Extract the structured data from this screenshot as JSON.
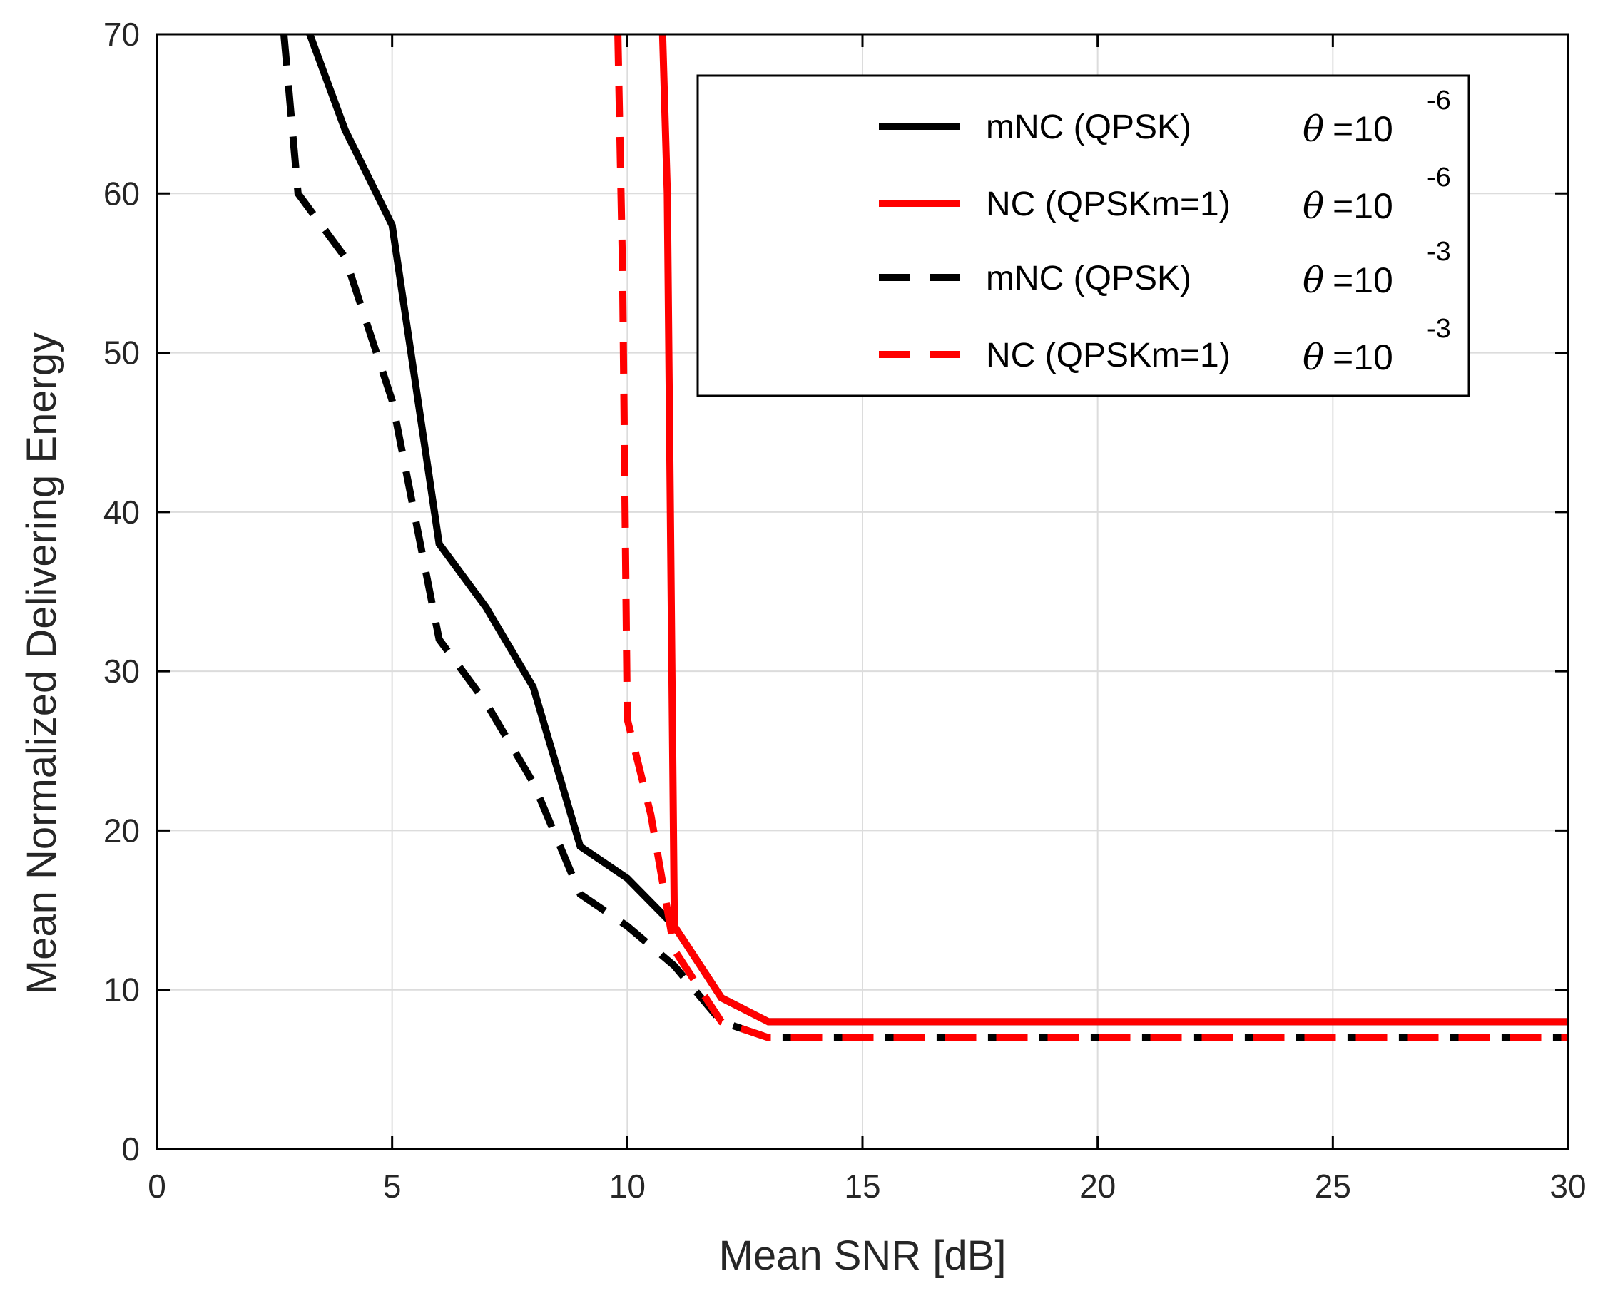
{
  "chart_data": {
    "type": "line",
    "xlabel": "Mean SNR [dB]",
    "ylabel": "Mean Normalized Delivering Energy",
    "xlim": [
      0,
      30
    ],
    "ylim": [
      0,
      70
    ],
    "xticks": [
      0,
      5,
      10,
      15,
      20,
      25,
      30
    ],
    "yticks": [
      0,
      10,
      20,
      30,
      40,
      50,
      60,
      70
    ],
    "xtick_labels": [
      "0",
      "5",
      "10",
      "15",
      "20",
      "25",
      "30"
    ],
    "ytick_labels": [
      "0",
      "10",
      "20",
      "30",
      "40",
      "50",
      "60",
      "70"
    ],
    "grid": true,
    "legend_position": "top-right",
    "series": [
      {
        "name": "mNC (QPSK)",
        "theta_base": "=10",
        "theta_exp": "-6",
        "color": "#000000",
        "style": "solid",
        "x": [
          3,
          4,
          5,
          6,
          7,
          8,
          9,
          10,
          11,
          12,
          13,
          14,
          15,
          16,
          17,
          18,
          19,
          20,
          21,
          22,
          23,
          24,
          25,
          26,
          27,
          28,
          29,
          30
        ],
        "y": [
          72,
          64,
          58,
          38,
          34,
          29,
          19,
          17,
          14,
          9.5,
          8,
          8,
          8,
          8,
          8,
          8,
          8,
          8,
          8,
          8,
          8,
          8,
          8,
          8,
          8,
          8,
          8,
          8
        ]
      },
      {
        "name": "NC (QPSKm=1)",
        "theta_base": "=10",
        "theta_exp": "-6",
        "color": "#ff0000",
        "style": "solid",
        "x": [
          10.75,
          10.85,
          11,
          12,
          13,
          14,
          15,
          16,
          17,
          18,
          19,
          20,
          21,
          22,
          23,
          24,
          25,
          26,
          27,
          28,
          29,
          30
        ],
        "y": [
          70,
          60,
          14,
          9.5,
          8,
          8,
          8,
          8,
          8,
          8,
          8,
          8,
          8,
          8,
          8,
          8,
          8,
          8,
          8,
          8,
          8,
          8
        ]
      },
      {
        "name": "mNC (QPSK)",
        "theta_base": "=10",
        "theta_exp": "-3",
        "color": "#000000",
        "style": "dashed",
        "x": [
          2.7,
          3,
          4,
          5,
          6,
          7,
          8,
          9,
          10,
          11,
          12,
          13,
          14,
          15,
          16,
          17,
          18,
          19,
          20,
          21,
          22,
          23,
          24,
          25,
          26,
          27,
          28,
          29,
          30
        ],
        "y": [
          70,
          60,
          56,
          47,
          32,
          28,
          23,
          16,
          14,
          11.5,
          8,
          7,
          7,
          7,
          7,
          7,
          7,
          7,
          7,
          7,
          7,
          7,
          7,
          7,
          7,
          7,
          7,
          7,
          7
        ]
      },
      {
        "name": "NC (QPSKm=1)",
        "theta_base": "=10",
        "theta_exp": "-3",
        "color": "#ff0000",
        "style": "dashed",
        "x": [
          9.8,
          9.9,
          10,
          10.5,
          11,
          12,
          13,
          14,
          15,
          16,
          17,
          18,
          19,
          20,
          21,
          22,
          23,
          24,
          25,
          26,
          27,
          28,
          29,
          30
        ],
        "y": [
          70,
          55,
          27,
          21,
          12.5,
          8,
          7,
          7,
          7,
          7,
          7,
          7,
          7,
          7,
          7,
          7,
          7,
          7,
          7,
          7,
          7,
          7,
          7,
          7
        ]
      }
    ]
  }
}
